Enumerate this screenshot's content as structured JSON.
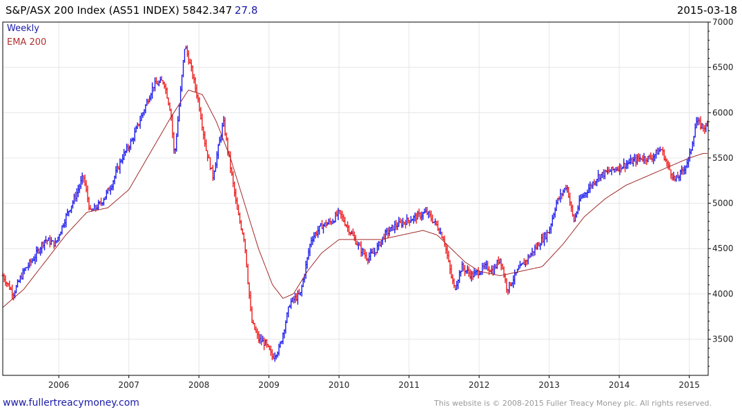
{
  "header": {
    "title": "S&P/ASX 200 Index (AS51 INDEX) 5842.347",
    "change": "27.8",
    "date": "2015-03-18"
  },
  "legend": {
    "weekly": "Weekly",
    "ema": "EMA 200"
  },
  "footer": {
    "link": "www.fullertreacymoney.com",
    "copyright": "This website is © 2008-2015 Fuller Treacy Money plc. All rights reserved."
  },
  "colors": {
    "up_bar": "#1a1aee",
    "down_bar": "#ee1a1a",
    "ema": "#a02828",
    "grid": "#e6e6e6",
    "frame": "#000000"
  },
  "chart_data": {
    "type": "line",
    "ylim": [
      3100,
      7000
    ],
    "xlim": [
      2005.2,
      2015.27
    ],
    "y_ticks": [
      3500,
      4000,
      4500,
      5000,
      5500,
      6000,
      6500,
      7000
    ],
    "x_ticks": [
      {
        "x": 2006,
        "label": "2006"
      },
      {
        "x": 2007,
        "label": "2007"
      },
      {
        "x": 2008,
        "label": "2008"
      },
      {
        "x": 2009,
        "label": "2009"
      },
      {
        "x": 2010,
        "label": "2010"
      },
      {
        "x": 2011,
        "label": "2011"
      },
      {
        "x": 2012,
        "label": "2012"
      },
      {
        "x": 2013,
        "label": "2013"
      },
      {
        "x": 2014,
        "label": "2014"
      },
      {
        "x": 2015,
        "label": "2015"
      }
    ],
    "grid": true,
    "legend_position": "top-left",
    "series": [
      {
        "name": "Weekly",
        "x": [
          2005.2,
          2005.35,
          2005.5,
          2005.65,
          2005.8,
          2005.95,
          2006.1,
          2006.25,
          2006.35,
          2006.45,
          2006.6,
          2006.75,
          2006.9,
          2007.05,
          2007.2,
          2007.35,
          2007.5,
          2007.6,
          2007.65,
          2007.8,
          2007.9,
          2008.0,
          2008.1,
          2008.2,
          2008.3,
          2008.35,
          2008.45,
          2008.55,
          2008.65,
          2008.75,
          2008.85,
          2008.95,
          2009.05,
          2009.15,
          2009.3,
          2009.45,
          2009.6,
          2009.75,
          2009.9,
          2010.0,
          2010.15,
          2010.3,
          2010.4,
          2010.5,
          2010.65,
          2010.8,
          2010.95,
          2011.1,
          2011.25,
          2011.4,
          2011.5,
          2011.6,
          2011.65,
          2011.75,
          2011.9,
          2012.0,
          2012.1,
          2012.2,
          2012.3,
          2012.4,
          2012.55,
          2012.7,
          2012.85,
          2013.0,
          2013.1,
          2013.25,
          2013.35,
          2013.45,
          2013.55,
          2013.7,
          2013.85,
          2014.0,
          2014.15,
          2014.3,
          2014.45,
          2014.6,
          2014.7,
          2014.8,
          2014.9,
          2015.0,
          2015.1,
          2015.2
        ],
        "values": [
          4200,
          4000,
          4250,
          4400,
          4600,
          4550,
          4850,
          5100,
          5300,
          4900,
          5000,
          5200,
          5500,
          5700,
          6000,
          6300,
          6350,
          6000,
          5500,
          6750,
          6450,
          6100,
          5600,
          5300,
          5700,
          5900,
          5400,
          4900,
          4600,
          3700,
          3500,
          3450,
          3300,
          3400,
          3900,
          4000,
          4600,
          4750,
          4800,
          4900,
          4700,
          4500,
          4400,
          4450,
          4650,
          4750,
          4800,
          4850,
          4900,
          4750,
          4600,
          4200,
          4050,
          4300,
          4200,
          4250,
          4300,
          4250,
          4400,
          4050,
          4250,
          4400,
          4550,
          4700,
          5000,
          5200,
          4800,
          5050,
          5150,
          5300,
          5350,
          5400,
          5450,
          5500,
          5500,
          5600,
          5400,
          5250,
          5350,
          5500,
          5900,
          5842
        ]
      },
      {
        "name": "EMA 200",
        "x": [
          2005.2,
          2005.5,
          2005.8,
          2006.1,
          2006.4,
          2006.7,
          2007.0,
          2007.3,
          2007.6,
          2007.85,
          2008.05,
          2008.25,
          2008.45,
          2008.65,
          2008.85,
          2009.05,
          2009.2,
          2009.35,
          2009.55,
          2009.75,
          2010.0,
          2010.3,
          2010.6,
          2010.9,
          2011.2,
          2011.4,
          2011.6,
          2011.8,
          2012.0,
          2012.3,
          2012.6,
          2012.9,
          2013.2,
          2013.5,
          2013.8,
          2014.1,
          2014.4,
          2014.7,
          2015.0,
          2015.2
        ],
        "values": [
          3850,
          4050,
          4350,
          4650,
          4900,
          4950,
          5150,
          5550,
          5950,
          6250,
          6200,
          5900,
          5500,
          5000,
          4500,
          4100,
          3950,
          4000,
          4250,
          4450,
          4600,
          4600,
          4600,
          4650,
          4700,
          4650,
          4500,
          4350,
          4250,
          4200,
          4250,
          4300,
          4550,
          4850,
          5050,
          5200,
          5300,
          5400,
          5500,
          5550
        ]
      }
    ]
  }
}
